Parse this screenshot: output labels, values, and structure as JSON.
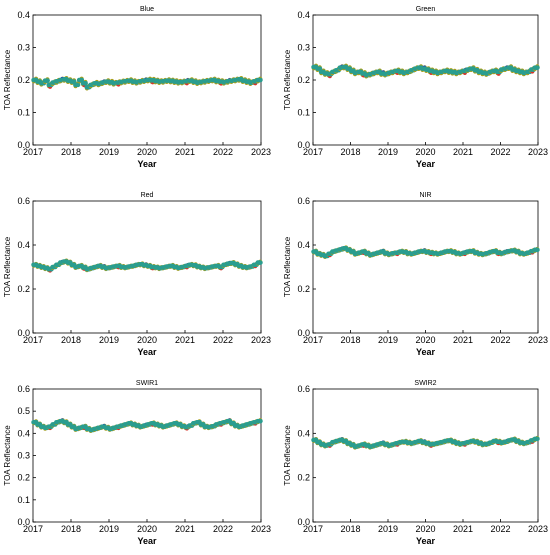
{
  "figure": {
    "series_colors": [
      "#2a9d8f",
      "#a89f1c",
      "#d9342b",
      "#1f3fbf"
    ]
  },
  "chart_data": [
    {
      "type": "scatter",
      "title": "Blue",
      "xlabel": "Year",
      "ylabel": "TOA Reflectance",
      "xlim": [
        2017,
        2023
      ],
      "ylim": [
        0,
        0.4
      ],
      "xticks": [
        "2017",
        "2018",
        "2019",
        "2020",
        "2021",
        "2022",
        "2023"
      ],
      "yticks": [
        "0.0",
        "0.1",
        "0.2",
        "0.3",
        "0.4"
      ],
      "x": [
        2017.05,
        2017.15,
        2017.25,
        2017.35,
        2017.45,
        2017.55,
        2017.65,
        2017.75,
        2017.85,
        2017.95,
        2018.05,
        2018.15,
        2018.25,
        2018.35,
        2018.45,
        2018.55,
        2018.65,
        2018.75,
        2018.85,
        2018.95,
        2019.05,
        2019.15,
        2019.25,
        2019.35,
        2019.45,
        2019.55,
        2019.65,
        2019.75,
        2019.85,
        2019.95,
        2020.05,
        2020.15,
        2020.25,
        2020.35,
        2020.45,
        2020.55,
        2020.65,
        2020.75,
        2020.85,
        2020.95,
        2021.05,
        2021.15,
        2021.25,
        2021.35,
        2021.45,
        2021.55,
        2021.65,
        2021.75,
        2021.85,
        2021.95,
        2022.05,
        2022.15,
        2022.25,
        2022.35,
        2022.45,
        2022.55,
        2022.65,
        2022.75,
        2022.85,
        2022.95
      ],
      "y": [
        0.2,
        0.195,
        0.19,
        0.198,
        0.185,
        0.192,
        0.196,
        0.2,
        0.202,
        0.198,
        0.195,
        0.185,
        0.2,
        0.19,
        0.178,
        0.185,
        0.19,
        0.188,
        0.192,
        0.195,
        0.193,
        0.19,
        0.192,
        0.194,
        0.196,
        0.198,
        0.195,
        0.193,
        0.196,
        0.198,
        0.2,
        0.199,
        0.197,
        0.195,
        0.196,
        0.198,
        0.197,
        0.195,
        0.193,
        0.194,
        0.196,
        0.198,
        0.195,
        0.192,
        0.194,
        0.196,
        0.198,
        0.2,
        0.197,
        0.195,
        0.193,
        0.196,
        0.198,
        0.2,
        0.202,
        0.198,
        0.195,
        0.192,
        0.196,
        0.2
      ]
    },
    {
      "type": "scatter",
      "title": "Green",
      "xlabel": "Year",
      "ylabel": "TOA Reflectance",
      "xlim": [
        2017,
        2023
      ],
      "ylim": [
        0,
        0.4
      ],
      "xticks": [
        "2017",
        "2018",
        "2019",
        "2020",
        "2021",
        "2022",
        "2023"
      ],
      "yticks": [
        "0.0",
        "0.1",
        "0.2",
        "0.3",
        "0.4"
      ],
      "x": [
        2017.05,
        2017.15,
        2017.25,
        2017.35,
        2017.45,
        2017.55,
        2017.65,
        2017.75,
        2017.85,
        2017.95,
        2018.05,
        2018.15,
        2018.25,
        2018.35,
        2018.45,
        2018.55,
        2018.65,
        2018.75,
        2018.85,
        2018.95,
        2019.05,
        2019.15,
        2019.25,
        2019.35,
        2019.45,
        2019.55,
        2019.65,
        2019.75,
        2019.85,
        2019.95,
        2020.05,
        2020.15,
        2020.25,
        2020.35,
        2020.45,
        2020.55,
        2020.65,
        2020.75,
        2020.85,
        2020.95,
        2021.05,
        2021.15,
        2021.25,
        2021.35,
        2021.45,
        2021.55,
        2021.65,
        2021.75,
        2021.85,
        2021.95,
        2022.05,
        2022.15,
        2022.25,
        2022.35,
        2022.45,
        2022.55,
        2022.65,
        2022.75,
        2022.85,
        2022.95
      ],
      "y": [
        0.24,
        0.235,
        0.225,
        0.22,
        0.218,
        0.225,
        0.23,
        0.238,
        0.24,
        0.235,
        0.228,
        0.222,
        0.225,
        0.22,
        0.215,
        0.218,
        0.222,
        0.225,
        0.22,
        0.218,
        0.222,
        0.225,
        0.228,
        0.225,
        0.222,
        0.225,
        0.23,
        0.235,
        0.238,
        0.235,
        0.232,
        0.228,
        0.225,
        0.222,
        0.225,
        0.228,
        0.226,
        0.224,
        0.222,
        0.225,
        0.228,
        0.232,
        0.235,
        0.23,
        0.225,
        0.222,
        0.22,
        0.225,
        0.228,
        0.225,
        0.232,
        0.235,
        0.238,
        0.232,
        0.228,
        0.225,
        0.222,
        0.225,
        0.232,
        0.238
      ]
    },
    {
      "type": "scatter",
      "title": "Red",
      "xlabel": "Year",
      "ylabel": "TOA Reflectance",
      "xlim": [
        2017,
        2023
      ],
      "ylim": [
        0,
        0.6
      ],
      "xticks": [
        "2017",
        "2018",
        "2019",
        "2020",
        "2021",
        "2022",
        "2023"
      ],
      "yticks": [
        "0.0",
        "0.2",
        "0.4",
        "0.6"
      ],
      "x": [
        2017.05,
        2017.15,
        2017.25,
        2017.35,
        2017.45,
        2017.55,
        2017.65,
        2017.75,
        2017.85,
        2017.95,
        2018.05,
        2018.15,
        2018.25,
        2018.35,
        2018.45,
        2018.55,
        2018.65,
        2018.75,
        2018.85,
        2018.95,
        2019.05,
        2019.15,
        2019.25,
        2019.35,
        2019.45,
        2019.55,
        2019.65,
        2019.75,
        2019.85,
        2019.95,
        2020.05,
        2020.15,
        2020.25,
        2020.35,
        2020.45,
        2020.55,
        2020.65,
        2020.75,
        2020.85,
        2020.95,
        2021.05,
        2021.15,
        2021.25,
        2021.35,
        2021.45,
        2021.55,
        2021.65,
        2021.75,
        2021.85,
        2021.95,
        2022.05,
        2022.15,
        2022.25,
        2022.35,
        2022.45,
        2022.55,
        2022.65,
        2022.75,
        2022.85,
        2022.95
      ],
      "y": [
        0.31,
        0.305,
        0.3,
        0.295,
        0.29,
        0.3,
        0.31,
        0.32,
        0.325,
        0.32,
        0.31,
        0.3,
        0.305,
        0.298,
        0.29,
        0.295,
        0.3,
        0.305,
        0.3,
        0.295,
        0.298,
        0.302,
        0.305,
        0.3,
        0.298,
        0.302,
        0.305,
        0.31,
        0.312,
        0.308,
        0.305,
        0.3,
        0.298,
        0.295,
        0.298,
        0.302,
        0.305,
        0.3,
        0.296,
        0.3,
        0.305,
        0.31,
        0.308,
        0.302,
        0.298,
        0.295,
        0.298,
        0.302,
        0.305,
        0.3,
        0.31,
        0.315,
        0.318,
        0.312,
        0.305,
        0.3,
        0.298,
        0.302,
        0.31,
        0.32
      ]
    },
    {
      "type": "scatter",
      "title": "NIR",
      "xlabel": "Year",
      "ylabel": "TOA Reflectance",
      "xlim": [
        2017,
        2023
      ],
      "ylim": [
        0,
        0.6
      ],
      "xticks": [
        "2017",
        "2018",
        "2019",
        "2020",
        "2021",
        "2022",
        "2023"
      ],
      "yticks": [
        "0.0",
        "0.2",
        "0.4",
        "0.6"
      ],
      "x": [
        2017.05,
        2017.15,
        2017.25,
        2017.35,
        2017.45,
        2017.55,
        2017.65,
        2017.75,
        2017.85,
        2017.95,
        2018.05,
        2018.15,
        2018.25,
        2018.35,
        2018.45,
        2018.55,
        2018.65,
        2018.75,
        2018.85,
        2018.95,
        2019.05,
        2019.15,
        2019.25,
        2019.35,
        2019.45,
        2019.55,
        2019.65,
        2019.75,
        2019.85,
        2019.95,
        2020.05,
        2020.15,
        2020.25,
        2020.35,
        2020.45,
        2020.55,
        2020.65,
        2020.75,
        2020.85,
        2020.95,
        2021.05,
        2021.15,
        2021.25,
        2021.35,
        2021.45,
        2021.55,
        2021.65,
        2021.75,
        2021.85,
        2021.95,
        2022.05,
        2022.15,
        2022.25,
        2022.35,
        2022.45,
        2022.55,
        2022.65,
        2022.75,
        2022.85,
        2022.95
      ],
      "y": [
        0.37,
        0.36,
        0.355,
        0.35,
        0.36,
        0.37,
        0.375,
        0.38,
        0.385,
        0.378,
        0.37,
        0.36,
        0.365,
        0.37,
        0.362,
        0.355,
        0.36,
        0.365,
        0.37,
        0.362,
        0.358,
        0.362,
        0.365,
        0.37,
        0.368,
        0.362,
        0.36,
        0.365,
        0.37,
        0.372,
        0.368,
        0.365,
        0.362,
        0.36,
        0.365,
        0.37,
        0.372,
        0.368,
        0.362,
        0.36,
        0.365,
        0.37,
        0.372,
        0.365,
        0.36,
        0.358,
        0.362,
        0.368,
        0.372,
        0.365,
        0.362,
        0.368,
        0.372,
        0.375,
        0.37,
        0.362,
        0.36,
        0.365,
        0.372,
        0.378
      ]
    },
    {
      "type": "scatter",
      "title": "SWIR1",
      "xlabel": "Year",
      "ylabel": "TOA Reflectance",
      "xlim": [
        2017,
        2023
      ],
      "ylim": [
        0,
        0.6
      ],
      "xticks": [
        "2017",
        "2018",
        "2019",
        "2020",
        "2021",
        "2022",
        "2023"
      ],
      "yticks": [
        "0.0",
        "0.1",
        "0.2",
        "0.3",
        "0.4",
        "0.5",
        "0.6"
      ],
      "x": [
        2017.05,
        2017.15,
        2017.25,
        2017.35,
        2017.45,
        2017.55,
        2017.65,
        2017.75,
        2017.85,
        2017.95,
        2018.05,
        2018.15,
        2018.25,
        2018.35,
        2018.45,
        2018.55,
        2018.65,
        2018.75,
        2018.85,
        2018.95,
        2019.05,
        2019.15,
        2019.25,
        2019.35,
        2019.45,
        2019.55,
        2019.65,
        2019.75,
        2019.85,
        2019.95,
        2020.05,
        2020.15,
        2020.25,
        2020.35,
        2020.45,
        2020.55,
        2020.65,
        2020.75,
        2020.85,
        2020.95,
        2021.05,
        2021.15,
        2021.25,
        2021.35,
        2021.45,
        2021.55,
        2021.65,
        2021.75,
        2021.85,
        2021.95,
        2022.05,
        2022.15,
        2022.25,
        2022.35,
        2022.45,
        2022.55,
        2022.65,
        2022.75,
        2022.85,
        2022.95
      ],
      "y": [
        0.45,
        0.44,
        0.43,
        0.425,
        0.43,
        0.44,
        0.45,
        0.455,
        0.45,
        0.44,
        0.43,
        0.42,
        0.425,
        0.43,
        0.42,
        0.415,
        0.42,
        0.425,
        0.43,
        0.425,
        0.42,
        0.425,
        0.43,
        0.435,
        0.44,
        0.445,
        0.44,
        0.435,
        0.43,
        0.435,
        0.44,
        0.445,
        0.44,
        0.435,
        0.43,
        0.435,
        0.44,
        0.445,
        0.44,
        0.432,
        0.428,
        0.435,
        0.445,
        0.45,
        0.44,
        0.43,
        0.428,
        0.432,
        0.44,
        0.445,
        0.45,
        0.455,
        0.445,
        0.435,
        0.43,
        0.435,
        0.44,
        0.445,
        0.45,
        0.455
      ]
    },
    {
      "type": "scatter",
      "title": "SWIR2",
      "xlabel": "Year",
      "ylabel": "TOA Reflectance",
      "xlim": [
        2017,
        2023
      ],
      "ylim": [
        0,
        0.6
      ],
      "xticks": [
        "2017",
        "2018",
        "2019",
        "2020",
        "2021",
        "2022",
        "2023"
      ],
      "yticks": [
        "0.0",
        "0.2",
        "0.4",
        "0.6"
      ],
      "x": [
        2017.05,
        2017.15,
        2017.25,
        2017.35,
        2017.45,
        2017.55,
        2017.65,
        2017.75,
        2017.85,
        2017.95,
        2018.05,
        2018.15,
        2018.25,
        2018.35,
        2018.45,
        2018.55,
        2018.65,
        2018.75,
        2018.85,
        2018.95,
        2019.05,
        2019.15,
        2019.25,
        2019.35,
        2019.45,
        2019.55,
        2019.65,
        2019.75,
        2019.85,
        2019.95,
        2020.05,
        2020.15,
        2020.25,
        2020.35,
        2020.45,
        2020.55,
        2020.65,
        2020.75,
        2020.85,
        2020.95,
        2021.05,
        2021.15,
        2021.25,
        2021.35,
        2021.45,
        2021.55,
        2021.65,
        2021.75,
        2021.85,
        2021.95,
        2022.05,
        2022.15,
        2022.25,
        2022.35,
        2022.45,
        2022.55,
        2022.65,
        2022.75,
        2022.85,
        2022.95
      ],
      "y": [
        0.37,
        0.36,
        0.35,
        0.345,
        0.35,
        0.36,
        0.365,
        0.37,
        0.365,
        0.355,
        0.348,
        0.34,
        0.345,
        0.35,
        0.345,
        0.34,
        0.345,
        0.35,
        0.355,
        0.35,
        0.345,
        0.35,
        0.355,
        0.36,
        0.362,
        0.358,
        0.355,
        0.36,
        0.365,
        0.36,
        0.355,
        0.35,
        0.352,
        0.356,
        0.36,
        0.365,
        0.368,
        0.362,
        0.356,
        0.352,
        0.355,
        0.36,
        0.365,
        0.362,
        0.356,
        0.35,
        0.352,
        0.358,
        0.365,
        0.362,
        0.358,
        0.362,
        0.368,
        0.372,
        0.365,
        0.358,
        0.355,
        0.36,
        0.368,
        0.375
      ]
    }
  ]
}
